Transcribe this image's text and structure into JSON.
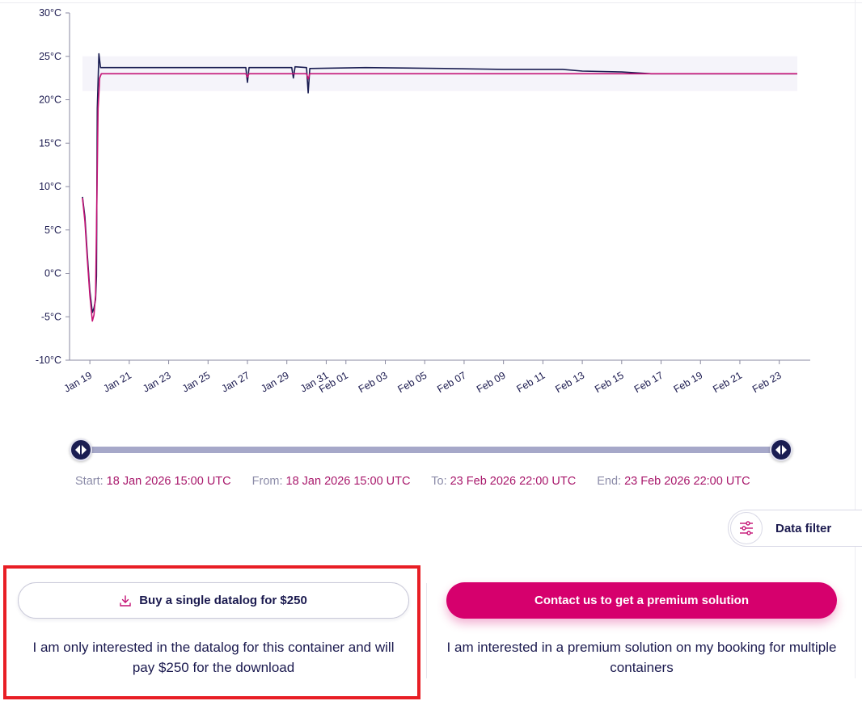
{
  "chart_data": {
    "type": "line",
    "title": "",
    "xlabel": "",
    "ylabel": "",
    "ylim": [
      -10,
      30
    ],
    "y_ticks": [
      "-10°C",
      "-5°C",
      "0°C",
      "5°C",
      "10°C",
      "15°C",
      "20°C",
      "25°C",
      "30°C"
    ],
    "x_ticks": [
      "Jan 19",
      "Jan 21",
      "Jan 23",
      "Jan 25",
      "Jan 27",
      "Jan 29",
      "Jan 31",
      "Feb 01",
      "Feb 03",
      "Feb 05",
      "Feb 07",
      "Feb 09",
      "Feb 11",
      "Feb 13",
      "Feb 15",
      "Feb 17",
      "Feb 19",
      "Feb 21",
      "Feb 23"
    ],
    "x_range": [
      "2026-01-18T15:00",
      "2026-02-23T22:00"
    ],
    "grid": false,
    "setpoint_band": [
      21,
      25
    ],
    "series": [
      {
        "color": "#1a1d52",
        "points": [
          [
            "2026-01-18T15:00",
            8.8
          ],
          [
            "2026-01-18T18:00",
            6.5
          ],
          [
            "2026-01-18T21:00",
            2.0
          ],
          [
            "2026-01-19T00:00",
            -2.0
          ],
          [
            "2026-01-19T03:00",
            -4.5
          ],
          [
            "2026-01-19T05:00",
            -4.0
          ],
          [
            "2026-01-19T07:00",
            -3.0
          ],
          [
            "2026-01-19T08:00",
            -0.3
          ],
          [
            "2026-01-19T09:00",
            19.0
          ],
          [
            "2026-01-19T11:00",
            25.3
          ],
          [
            "2026-01-19T13:00",
            23.7
          ],
          [
            "2026-01-20T00:00",
            23.7
          ],
          [
            "2026-01-25T00:00",
            23.7
          ],
          [
            "2026-01-26T22:00",
            23.7
          ],
          [
            "2026-01-27T00:00",
            22.0
          ],
          [
            "2026-01-27T02:00",
            23.7
          ],
          [
            "2026-01-29T06:00",
            23.7
          ],
          [
            "2026-01-29T08:00",
            22.5
          ],
          [
            "2026-01-29T10:00",
            23.8
          ],
          [
            "2026-01-30T00:00",
            23.7
          ],
          [
            "2026-01-30T02:00",
            20.8
          ],
          [
            "2026-01-30T04:00",
            23.6
          ],
          [
            "2026-02-02T00:00",
            23.7
          ],
          [
            "2026-02-06T00:00",
            23.6
          ],
          [
            "2026-02-09T00:00",
            23.5
          ],
          [
            "2026-02-12T00:00",
            23.5
          ],
          [
            "2026-02-13T00:00",
            23.3
          ],
          [
            "2026-02-15T00:00",
            23.2
          ],
          [
            "2026-02-16T12:00",
            23.0
          ],
          [
            "2026-02-20T00:00",
            23.0
          ],
          [
            "2026-02-23T22:00",
            23.0
          ]
        ]
      },
      {
        "color": "#c41275",
        "points": [
          [
            "2026-01-18T15:00",
            8.7
          ],
          [
            "2026-01-18T18:00",
            6.0
          ],
          [
            "2026-01-18T21:00",
            1.5
          ],
          [
            "2026-01-19T00:00",
            -2.5
          ],
          [
            "2026-01-19T03:00",
            -5.5
          ],
          [
            "2026-01-19T05:00",
            -4.8
          ],
          [
            "2026-01-19T07:00",
            -2.5
          ],
          [
            "2026-01-19T08:00",
            5.0
          ],
          [
            "2026-01-19T10:00",
            19.0
          ],
          [
            "2026-01-19T12:00",
            22.5
          ],
          [
            "2026-01-19T14:00",
            23.0
          ],
          [
            "2026-01-21T00:00",
            23.0
          ],
          [
            "2026-01-26T22:00",
            23.0
          ],
          [
            "2026-01-27T00:00",
            22.6
          ],
          [
            "2026-01-27T02:00",
            23.0
          ],
          [
            "2026-01-30T00:00",
            23.0
          ],
          [
            "2026-01-30T02:00",
            22.4
          ],
          [
            "2026-01-30T04:00",
            23.0
          ],
          [
            "2026-02-10T00:00",
            23.0
          ],
          [
            "2026-02-23T22:00",
            23.0
          ]
        ]
      }
    ]
  },
  "range": {
    "start_label": "Start:",
    "start_value": "18 Jan 2026 15:00 UTC",
    "from_label": "From:",
    "from_value": "18 Jan 2026 15:00 UTC",
    "to_label": "To:",
    "to_value": "23 Feb 2026 22:00 UTC",
    "end_label": "End:",
    "end_value": "23 Feb 2026 22:00 UTC"
  },
  "filter": {
    "label": "Data filter",
    "icon": "sliders-icon"
  },
  "offers": {
    "single": {
      "button_label": "Buy a single datalog for $250",
      "icon": "download-icon",
      "description": "I am only interested in the datalog for this container and will pay $250 for the download"
    },
    "premium": {
      "button_label": "Contact us to get a premium solution",
      "description": "I am interested in a premium solution on my booking for multiple containers"
    }
  },
  "colors": {
    "navy": "#1a1d52",
    "magenta": "#d6006d",
    "band": "#f5f4fa",
    "highlight": "#e81e25"
  }
}
